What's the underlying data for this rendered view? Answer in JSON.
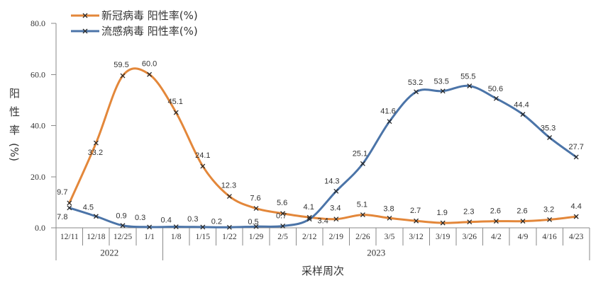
{
  "chart_data": {
    "type": "line",
    "smooth": true,
    "marker": "x",
    "legend": "top-left",
    "grid": false,
    "xlabel": "采样周次",
    "ylabel": "阳性率(%)",
    "ylim": [
      0,
      80
    ],
    "yticks": [
      0,
      20,
      40,
      60,
      80
    ],
    "category_groups": [
      {
        "label": "2022",
        "categories": [
          "12/11",
          "12/18",
          "12/25",
          "1/1"
        ]
      },
      {
        "label": "2023",
        "categories": [
          "1/8",
          "1/15",
          "1/22",
          "1/29",
          "2/5",
          "2/12",
          "2/19",
          "2/26",
          "3/5",
          "3/12",
          "3/19",
          "3/26",
          "4/2",
          "4/9",
          "4/16",
          "4/23"
        ]
      }
    ],
    "series": [
      {
        "name": "新冠病毒 阳性率(%)",
        "color": "#E3873A",
        "values": [
          9.7,
          33.2,
          59.5,
          60.0,
          45.1,
          24.1,
          12.3,
          7.6,
          5.6,
          4.1,
          3.4,
          5.1,
          3.8,
          2.7,
          1.9,
          2.3,
          2.6,
          2.6,
          3.2,
          4.4
        ]
      },
      {
        "name": "流感病毒 阳性率(%)",
        "color": "#4B74A8",
        "values": [
          7.8,
          4.5,
          0.9,
          0.3,
          0.4,
          0.3,
          0.2,
          0.5,
          0.7,
          3.4,
          14.3,
          25.1,
          41.6,
          53.2,
          53.5,
          55.5,
          50.6,
          44.4,
          35.3,
          27.7
        ]
      }
    ]
  }
}
